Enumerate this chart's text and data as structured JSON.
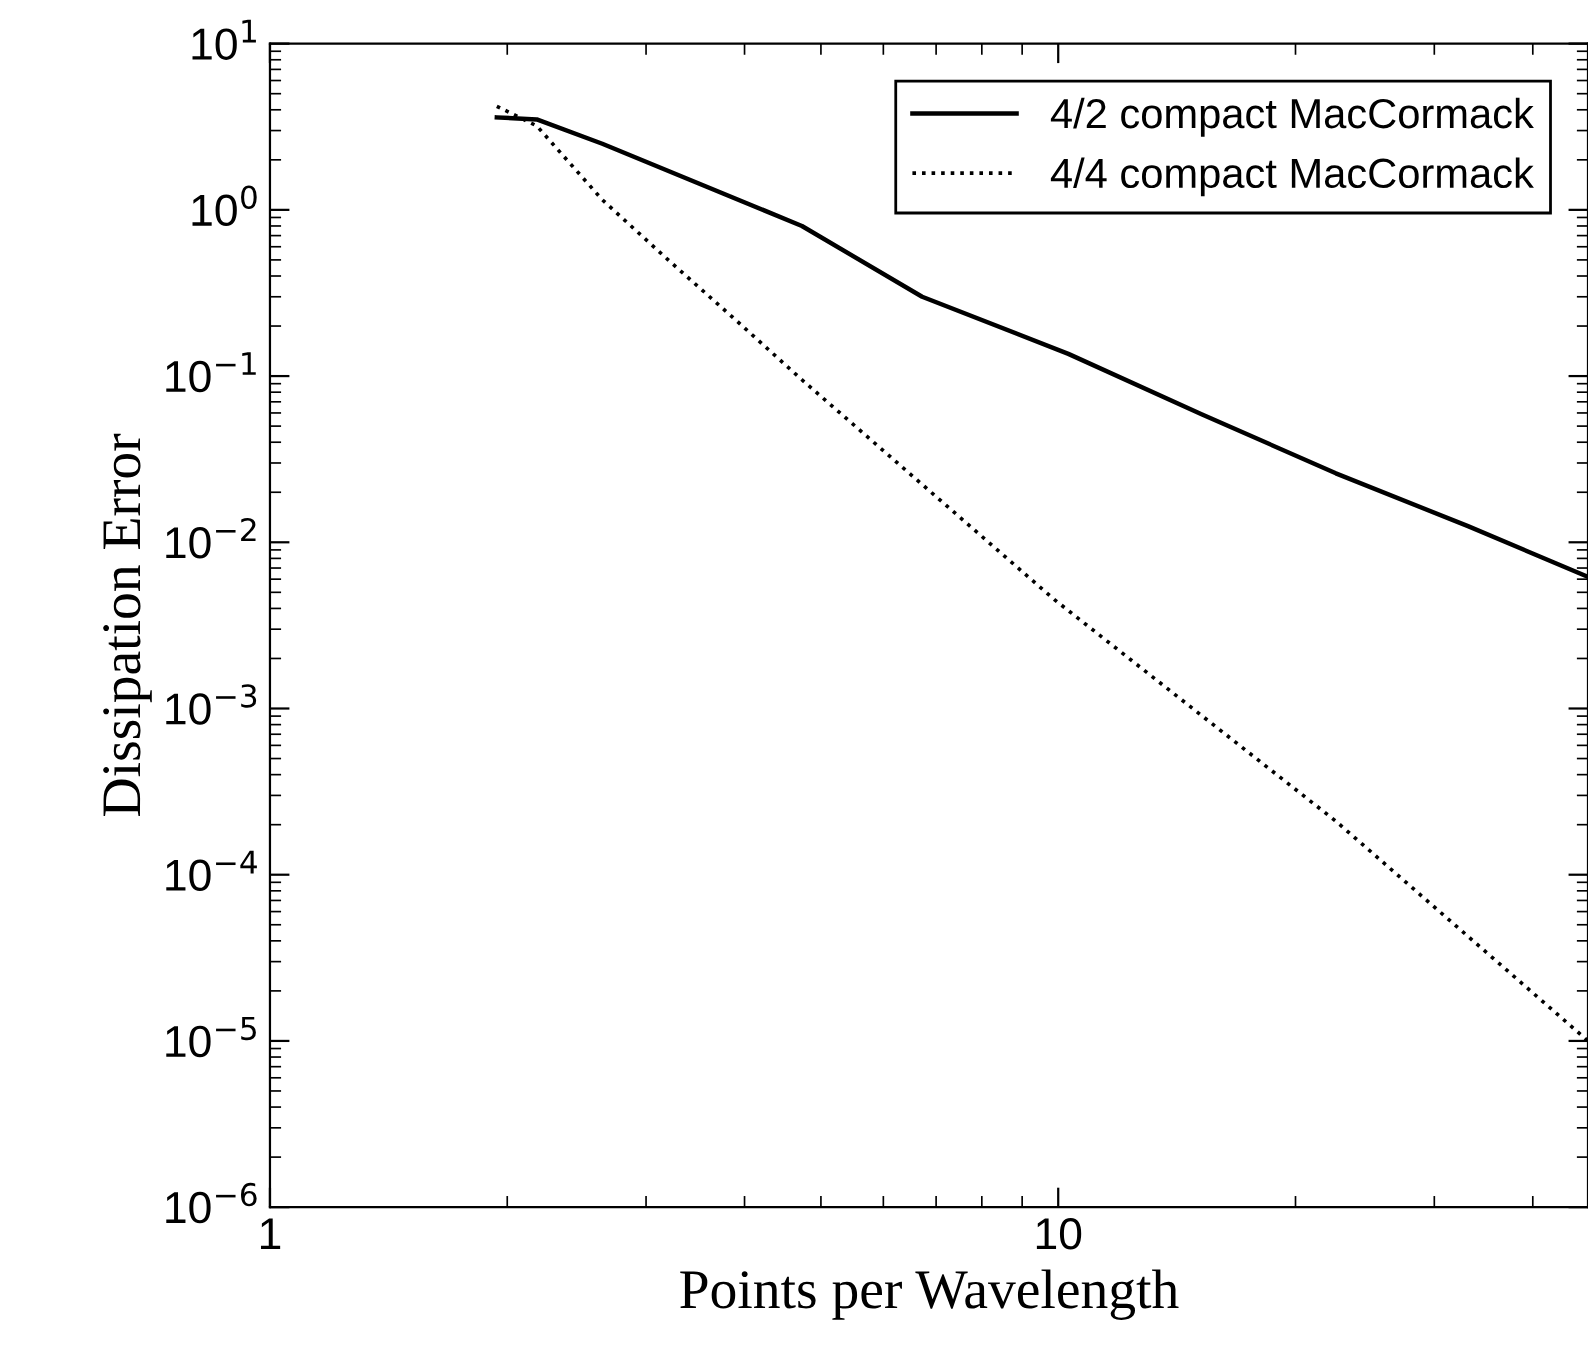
{
  "chart_data": {
    "type": "line",
    "xlabel": "Points per Wavelength",
    "ylabel": "Dissipation Error",
    "log": "xy",
    "xlim": [
      1,
      47
    ],
    "ylim": [
      1e-06,
      10
    ],
    "xticks": [
      1,
      10
    ],
    "yticks": [
      {
        "value": 1e-06,
        "label": "10$^{−6}$"
      },
      {
        "value": 1e-05,
        "label": "10$^{−5}$"
      },
      {
        "value": 0.0001,
        "label": "10$^{−4}$"
      },
      {
        "value": 0.001,
        "label": "10$^{−3}$"
      },
      {
        "value": 0.01,
        "label": "10$^{−2}$"
      },
      {
        "value": 0.1,
        "label": "10$^{−1}$"
      },
      {
        "value": 1,
        "label": "10$^{0}$"
      },
      {
        "value": 10,
        "label": "10$^{1}$"
      }
    ],
    "legend": "top right",
    "grid": false,
    "series": [
      {
        "name": "4/2 compact MacCormack",
        "color": "#000000",
        "line_style": "solid",
        "x": [
          1.94,
          2.18,
          2.64,
          4.73,
          6.72,
          10.3,
          15.2,
          22.5,
          33.1,
          47
        ],
        "values": [
          3.6,
          3.5,
          2.5,
          0.8,
          0.3,
          0.136,
          0.059,
          0.026,
          0.0125,
          0.0062
        ]
      },
      {
        "name": "4/4 compact MacCormack",
        "color": "#000000",
        "line_style": "dotted",
        "x": [
          1.94,
          2.18,
          2.64,
          3.2,
          3.9,
          4.73,
          9.9,
          22.5,
          47
        ],
        "values": [
          4.2,
          3.2,
          1.15,
          0.5,
          0.217,
          0.095,
          0.0045,
          0.00021,
          1e-05
        ]
      }
    ]
  }
}
